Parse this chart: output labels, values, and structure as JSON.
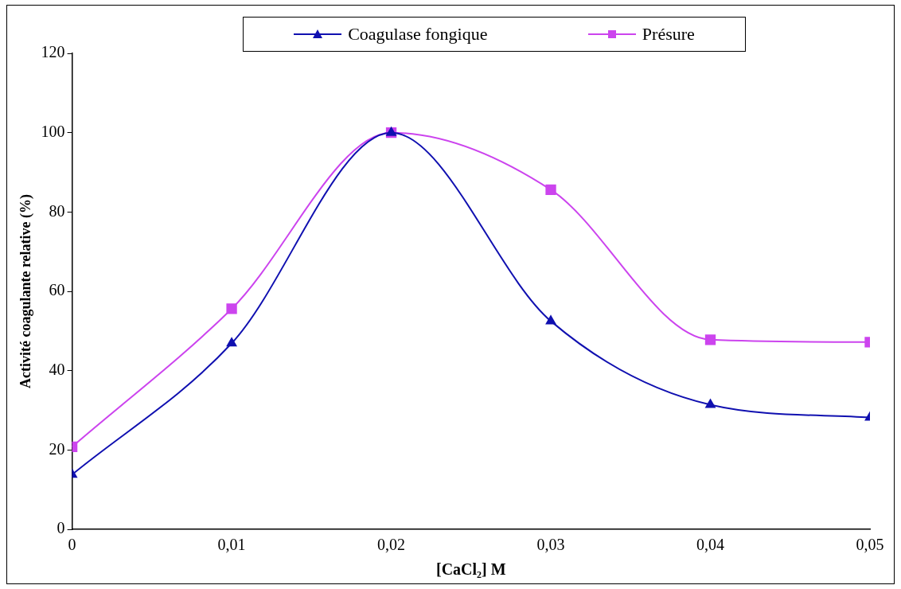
{
  "chart_data": {
    "type": "line",
    "xlabel": "[CaCl₂] M",
    "ylabel": "Activité coagulante relative (%)",
    "x": [
      0,
      0.01,
      0.02,
      0.03,
      0.04,
      0.05
    ],
    "series": [
      {
        "name": "Coagulase fongique",
        "color": "#1010b0",
        "marker": "triangle",
        "values": [
          13.8,
          46.9,
          100,
          52.5,
          31.4,
          28.2
        ]
      },
      {
        "name": "Présure",
        "color": "#cc44ee",
        "marker": "square",
        "values": [
          20.8,
          55.6,
          100,
          85.6,
          47.8,
          47.2
        ]
      }
    ],
    "xlim": [
      0,
      0.05
    ],
    "xticks": [
      0,
      {
        "value": 0.01,
        "label": "0,01"
      },
      {
        "value": 0.02,
        "label": "0,02"
      },
      {
        "value": 0.03,
        "label": "0,03"
      },
      {
        "value": 0.04,
        "label": "0,04"
      },
      {
        "value": 0.05,
        "label": "0,05"
      }
    ],
    "ylim": [
      0,
      120
    ],
    "yticks": [
      0,
      20,
      40,
      60,
      80,
      100,
      120
    ],
    "grid": false,
    "legend": "top",
    "line_style": "solid"
  }
}
